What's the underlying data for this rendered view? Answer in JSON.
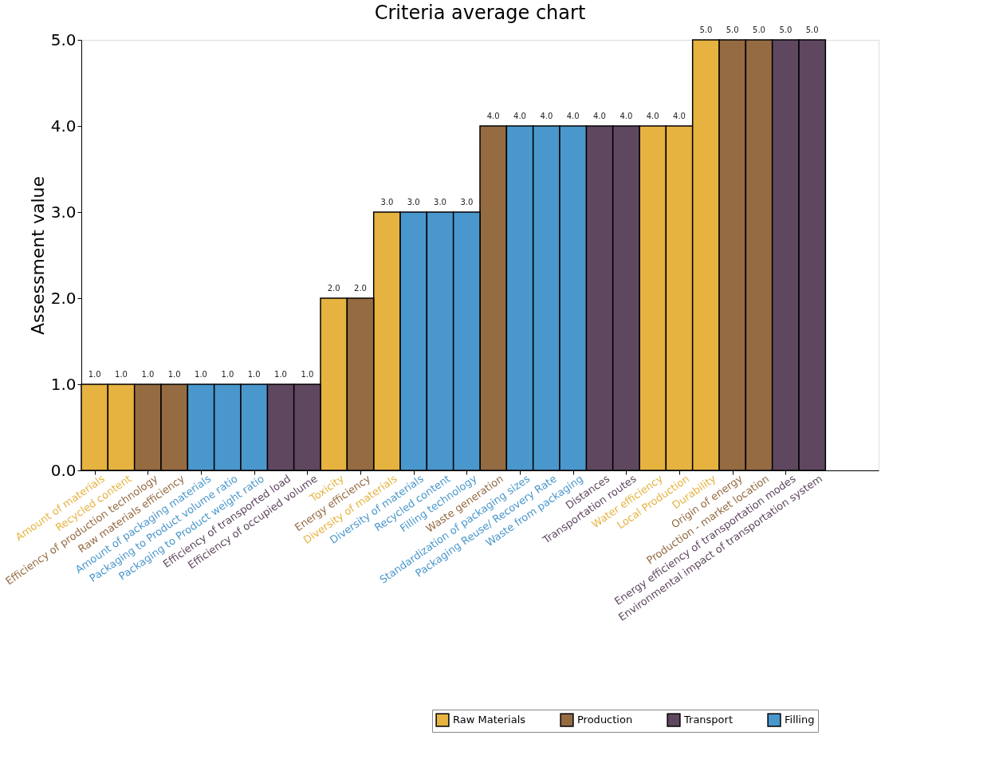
{
  "chart_data": {
    "type": "bar",
    "title": "Criteria average chart",
    "ylabel": "Assessment value",
    "categories": [
      "Amount of materials",
      "Recycled content",
      "Efficiency of production technology",
      "Raw materials efficiency",
      "Amount of packaging materials",
      "Packaging to Product volume ratio",
      "Packaging to Product weight ratio",
      "Efficiency of transported load",
      "Efficiency of occupied volume",
      "Toxicity",
      "Energy efficiency",
      "Diversity of materials",
      "Diversity of materials",
      "Recycled content",
      "Filling technology",
      "Waste generation",
      "Standardization of packaging sizes",
      "Packaging Reuse/ Recovery Rate",
      "Waste from packaging",
      "Distances",
      "Transportation routes",
      "Water efficiency",
      "Local Production",
      "Durability",
      "Origin of energy",
      "Production - market location",
      "Energy efficiency of transportation modes",
      "Environmental impact of transportation system"
    ],
    "series": [
      {
        "name": "Raw Materials",
        "color": "#e6b341",
        "values": [
          1,
          1,
          null,
          null,
          null,
          null,
          null,
          null,
          null,
          2,
          null,
          3,
          null,
          null,
          null,
          null,
          null,
          null,
          null,
          null,
          null,
          4,
          4,
          5,
          null,
          null,
          null,
          null
        ],
        "value_labels": [
          "1.0",
          "1.0",
          null,
          null,
          null,
          null,
          null,
          null,
          null,
          "2.0",
          null,
          "3.0",
          null,
          null,
          null,
          null,
          null,
          null,
          null,
          null,
          null,
          "4.0",
          "4.0",
          "5.0",
          null,
          null,
          null,
          null
        ]
      },
      {
        "name": "Production",
        "color": "#956b42",
        "values": [
          null,
          null,
          1,
          1,
          null,
          null,
          null,
          null,
          null,
          null,
          2,
          null,
          null,
          null,
          null,
          4,
          null,
          null,
          null,
          null,
          null,
          null,
          null,
          null,
          5,
          5,
          null,
          null
        ],
        "value_labels": [
          null,
          null,
          "1.0",
          "1.0",
          null,
          null,
          null,
          null,
          null,
          null,
          "2.0",
          null,
          null,
          null,
          null,
          "4.0",
          null,
          null,
          null,
          null,
          null,
          null,
          null,
          null,
          "5.0",
          "5.0",
          null,
          null
        ]
      },
      {
        "name": "Transport",
        "color": "#5f4760",
        "values": [
          null,
          null,
          null,
          null,
          null,
          null,
          null,
          1,
          1,
          null,
          null,
          null,
          null,
          null,
          null,
          null,
          null,
          null,
          null,
          4,
          4,
          null,
          null,
          null,
          null,
          null,
          5,
          5
        ],
        "value_labels": [
          null,
          null,
          null,
          null,
          null,
          null,
          null,
          "1.0",
          "1.0",
          null,
          null,
          null,
          null,
          null,
          null,
          null,
          null,
          null,
          null,
          "4.0",
          "4.0",
          null,
          null,
          null,
          null,
          null,
          "5.0",
          "5.0"
        ]
      },
      {
        "name": "Filling",
        "color": "#4a97cd",
        "values": [
          null,
          null,
          null,
          null,
          1,
          1,
          1,
          null,
          null,
          null,
          null,
          null,
          3,
          3,
          3,
          null,
          4,
          4,
          4,
          null,
          null,
          null,
          null,
          null,
          null,
          null,
          null,
          null
        ],
        "value_labels": [
          null,
          null,
          null,
          null,
          "1.0",
          "1.0",
          "1.0",
          null,
          null,
          null,
          null,
          null,
          "3.0",
          "3.0",
          "3.0",
          null,
          "4.0",
          "4.0",
          "4.0",
          null,
          null,
          null,
          null,
          null,
          null,
          null,
          null,
          null
        ]
      }
    ],
    "ylim": [
      0,
      5
    ],
    "yticks": [
      {
        "value": 0,
        "label": "0.0"
      },
      {
        "value": 1,
        "label": "1.0"
      },
      {
        "value": 2,
        "label": "2.0"
      },
      {
        "value": 3,
        "label": "3.0"
      },
      {
        "value": 4,
        "label": "4.0"
      },
      {
        "value": 5,
        "label": "5.0"
      }
    ],
    "grid": false,
    "legend": "bottom right"
  }
}
